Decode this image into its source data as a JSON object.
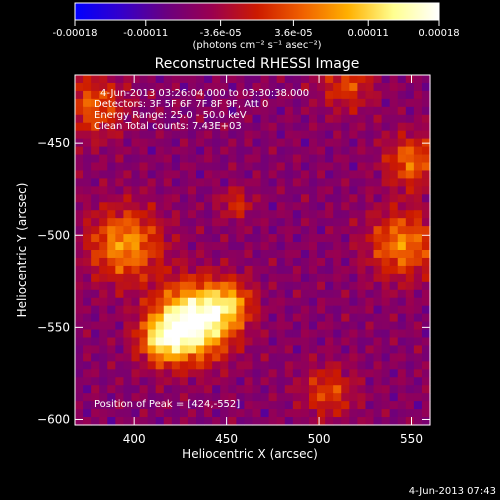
{
  "chart_data": {
    "type": "heatmap",
    "title": "Reconstructed RHESSI Image",
    "xlabel": "Heliocentric X (arcsec)",
    "ylabel": "Heliocentric Y (arcsec)",
    "xlim": [
      368,
      560
    ],
    "ylim": [
      -603,
      -413
    ],
    "x_ticks": [
      400,
      450,
      500,
      550
    ],
    "y_ticks": [
      -450,
      -500,
      -550,
      -600
    ],
    "grid": false,
    "colorbar": {
      "ticks": [
        -0.00018,
        -0.00011,
        -3.6e-05,
        3.6e-05,
        0.00011,
        0.00018
      ],
      "tick_labels": [
        "-0.00018",
        "-0.00011",
        "-3.6e-05",
        "3.6e-05",
        "0.00011",
        "0.00018"
      ],
      "unit_label": "(photons cm⁻² s⁻¹ asec⁻²)",
      "colors": [
        "#0000ff",
        "#3300cc",
        "#6a0080",
        "#9a0050",
        "#cc1a00",
        "#f06000",
        "#ffb000",
        "#ffff90",
        "#ffffff"
      ]
    },
    "annotations": [
      "4-Jun-2013 03:26:04.000 to 03:30:38.000",
      "Detectors: 3F 5F 6F 7F 8F 9F, Att 0",
      "Energy Range: 25.0 - 50.0 keV",
      "Clean     Total counts: 7.43E+03",
      "Position of Peak = [424,-552]"
    ],
    "sources": [
      {
        "x": 432,
        "y": -547,
        "sigma": 14,
        "amp": 1.0
      },
      {
        "x": 415,
        "y": -557,
        "sigma": 9,
        "amp": 0.55
      },
      {
        "x": 452,
        "y": -537,
        "sigma": 9,
        "amp": 0.45
      },
      {
        "x": 395,
        "y": -505,
        "sigma": 14,
        "amp": 0.55
      },
      {
        "x": 378,
        "y": -430,
        "sigma": 12,
        "amp": 0.4
      },
      {
        "x": 550,
        "y": -460,
        "sigma": 10,
        "amp": 0.45
      },
      {
        "x": 545,
        "y": -505,
        "sigma": 13,
        "amp": 0.5
      },
      {
        "x": 515,
        "y": -418,
        "sigma": 10,
        "amp": 0.35
      },
      {
        "x": 505,
        "y": -585,
        "sigma": 10,
        "amp": 0.35
      },
      {
        "x": 455,
        "y": -483,
        "sigma": 6,
        "amp": 0.3
      }
    ]
  },
  "footer_timestamp": "4-Jun-2013 07:43"
}
